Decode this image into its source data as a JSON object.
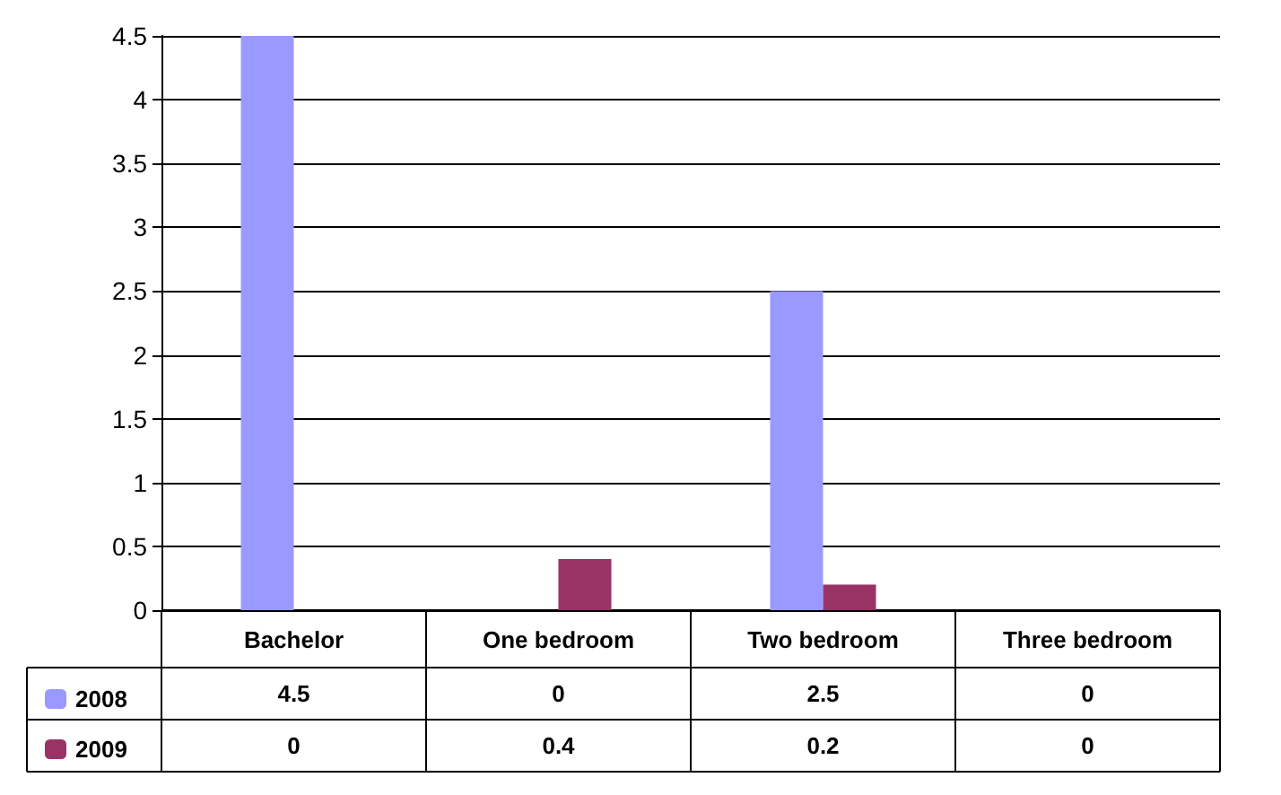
{
  "chart_data": {
    "type": "bar",
    "categories": [
      "Bachelor",
      "One bedroom",
      "Two bedroom",
      "Three bedroom"
    ],
    "series": [
      {
        "name": "2008",
        "color": "#9999ff",
        "values": [
          4.5,
          0,
          2.5,
          0
        ]
      },
      {
        "name": "2009",
        "color": "#993366",
        "values": [
          0,
          0.4,
          0.2,
          0
        ]
      }
    ],
    "ylim": [
      0,
      4.5
    ],
    "yticks": [
      0,
      0.5,
      1,
      1.5,
      2,
      2.5,
      3,
      3.5,
      4,
      4.5
    ],
    "grid": "y",
    "legend": "bottom left",
    "data_labels": true
  }
}
